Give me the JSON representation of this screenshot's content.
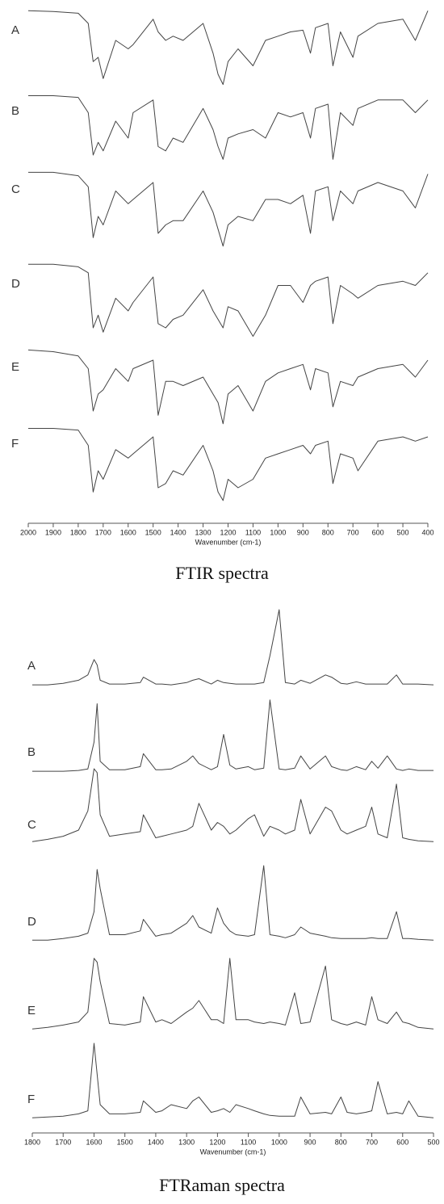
{
  "chart_data": [
    {
      "type": "line",
      "title": "FTIR spectra",
      "x_label": "Wavenumber (cm-1)",
      "xlim": [
        2000,
        400
      ],
      "xticks": [
        2000,
        1900,
        1800,
        1700,
        1600,
        1500,
        1400,
        1300,
        1200,
        1100,
        1000,
        900,
        800,
        700,
        600,
        500,
        400
      ],
      "ylim": [
        0,
        100
      ],
      "x": [
        2000,
        1900,
        1800,
        1760,
        1740,
        1720,
        1700,
        1650,
        1600,
        1580,
        1500,
        1480,
        1450,
        1420,
        1380,
        1300,
        1260,
        1240,
        1220,
        1200,
        1160,
        1100,
        1050,
        1000,
        950,
        900,
        870,
        850,
        800,
        780,
        750,
        700,
        680,
        600,
        500,
        450,
        400
      ],
      "series": [
        {
          "name": "A",
          "color": "#444444",
          "values": [
            95,
            94,
            92,
            80,
            35,
            40,
            15,
            60,
            50,
            55,
            85,
            70,
            60,
            65,
            60,
            80,
            45,
            20,
            8,
            35,
            50,
            30,
            60,
            65,
            70,
            72,
            45,
            75,
            80,
            30,
            70,
            40,
            65,
            80,
            85,
            60,
            95
          ]
        },
        {
          "name": "B",
          "color": "#444444",
          "values": [
            90,
            90,
            88,
            70,
            20,
            35,
            25,
            60,
            40,
            70,
            85,
            30,
            25,
            40,
            35,
            75,
            50,
            30,
            15,
            40,
            45,
            50,
            40,
            70,
            65,
            70,
            40,
            75,
            80,
            15,
            70,
            55,
            75,
            85,
            85,
            70,
            85
          ]
        },
        {
          "name": "C",
          "color": "#444444",
          "values": [
            92,
            92,
            88,
            75,
            15,
            40,
            30,
            70,
            55,
            60,
            80,
            20,
            30,
            35,
            35,
            70,
            45,
            25,
            5,
            30,
            40,
            35,
            60,
            60,
            55,
            65,
            20,
            70,
            75,
            35,
            70,
            55,
            70,
            80,
            70,
            50,
            90
          ]
        },
        {
          "name": "D",
          "color": "#444444",
          "values": [
            95,
            95,
            92,
            85,
            20,
            35,
            15,
            55,
            40,
            50,
            80,
            25,
            20,
            30,
            35,
            65,
            40,
            30,
            20,
            45,
            40,
            10,
            35,
            70,
            70,
            50,
            70,
            75,
            80,
            25,
            70,
            60,
            55,
            70,
            75,
            70,
            85
          ]
        },
        {
          "name": "E",
          "color": "#444444",
          "values": [
            92,
            90,
            85,
            70,
            20,
            40,
            45,
            70,
            55,
            70,
            80,
            15,
            55,
            55,
            50,
            60,
            40,
            30,
            5,
            40,
            50,
            20,
            55,
            65,
            70,
            75,
            45,
            70,
            65,
            25,
            55,
            50,
            60,
            70,
            75,
            60,
            80
          ]
        },
        {
          "name": "F",
          "color": "#444444",
          "values": [
            90,
            90,
            88,
            70,
            15,
            40,
            30,
            65,
            55,
            60,
            80,
            20,
            25,
            40,
            35,
            70,
            40,
            15,
            5,
            30,
            20,
            30,
            55,
            60,
            65,
            70,
            60,
            70,
            75,
            25,
            60,
            55,
            40,
            75,
            80,
            75,
            80
          ]
        }
      ]
    },
    {
      "type": "line",
      "title": "FTRaman spectra",
      "x_label": "Wavenumber (cm-1)",
      "xlim": [
        1800,
        500
      ],
      "xticks": [
        1800,
        1700,
        1600,
        1500,
        1400,
        1300,
        1200,
        1100,
        1000,
        900,
        800,
        700,
        600,
        500
      ],
      "ylim": [
        0,
        100
      ],
      "x": [
        1800,
        1750,
        1700,
        1650,
        1620,
        1600,
        1590,
        1580,
        1550,
        1500,
        1450,
        1440,
        1400,
        1380,
        1350,
        1300,
        1280,
        1260,
        1220,
        1200,
        1180,
        1160,
        1140,
        1100,
        1080,
        1050,
        1030,
        1000,
        980,
        950,
        930,
        900,
        850,
        830,
        800,
        780,
        750,
        720,
        700,
        680,
        650,
        620,
        600,
        580,
        550,
        500
      ],
      "series": [
        {
          "name": "A",
          "color": "#444444",
          "values": [
            2,
            2,
            4,
            8,
            15,
            35,
            28,
            8,
            3,
            3,
            5,
            12,
            3,
            3,
            2,
            5,
            8,
            10,
            3,
            8,
            5,
            4,
            3,
            3,
            3,
            5,
            40,
            100,
            5,
            3,
            8,
            4,
            15,
            12,
            4,
            3,
            6,
            3,
            3,
            3,
            3,
            15,
            3,
            3,
            3,
            2
          ]
        },
        {
          "name": "B",
          "color": "#444444",
          "values": [
            2,
            2,
            2,
            3,
            5,
            40,
            90,
            15,
            4,
            4,
            8,
            25,
            4,
            4,
            5,
            15,
            22,
            12,
            4,
            8,
            50,
            10,
            5,
            8,
            4,
            6,
            95,
            5,
            4,
            6,
            22,
            5,
            22,
            8,
            4,
            3,
            8,
            4,
            15,
            6,
            22,
            5,
            3,
            5,
            3,
            3
          ]
        },
        {
          "name": "C",
          "color": "#444444",
          "values": [
            5,
            8,
            12,
            20,
            45,
            100,
            95,
            40,
            12,
            15,
            18,
            40,
            10,
            12,
            15,
            20,
            25,
            55,
            20,
            30,
            25,
            15,
            20,
            35,
            40,
            12,
            25,
            20,
            15,
            20,
            60,
            15,
            50,
            45,
            20,
            15,
            20,
            25,
            50,
            15,
            10,
            80,
            10,
            8,
            6,
            5
          ]
        },
        {
          "name": "D",
          "color": "#444444",
          "values": [
            3,
            3,
            5,
            8,
            12,
            40,
            95,
            70,
            10,
            10,
            15,
            30,
            8,
            10,
            12,
            25,
            35,
            20,
            12,
            45,
            25,
            15,
            10,
            8,
            10,
            100,
            10,
            8,
            6,
            10,
            20,
            12,
            8,
            6,
            5,
            5,
            5,
            5,
            6,
            5,
            5,
            40,
            5,
            5,
            4,
            3
          ]
        },
        {
          "name": "E",
          "color": "#444444",
          "values": [
            3,
            5,
            8,
            12,
            25,
            95,
            90,
            65,
            10,
            8,
            12,
            45,
            12,
            15,
            10,
            25,
            30,
            40,
            15,
            15,
            10,
            95,
            15,
            15,
            12,
            10,
            12,
            10,
            8,
            50,
            10,
            12,
            85,
            15,
            10,
            8,
            12,
            8,
            45,
            15,
            10,
            25,
            12,
            10,
            5,
            3
          ]
        },
        {
          "name": "F",
          "color": "#444444",
          "values": [
            3,
            4,
            5,
            8,
            12,
            100,
            60,
            20,
            8,
            8,
            10,
            25,
            10,
            12,
            20,
            15,
            25,
            30,
            10,
            12,
            15,
            10,
            20,
            15,
            12,
            8,
            6,
            5,
            5,
            5,
            30,
            8,
            10,
            8,
            30,
            10,
            8,
            10,
            12,
            50,
            8,
            10,
            8,
            25,
            5,
            3
          ]
        }
      ]
    }
  ]
}
